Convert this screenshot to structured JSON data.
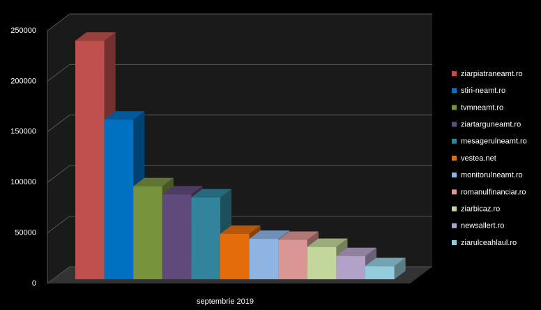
{
  "chart_data": {
    "type": "bar3d",
    "categories": [
      "septembrie 2019"
    ],
    "series": [
      {
        "name": "ziarpiatraneamt.ro",
        "color": "#c0504d",
        "values": [
          236000
        ]
      },
      {
        "name": "stiri-neamt.ro",
        "color": "#0070c0",
        "values": [
          158000
        ]
      },
      {
        "name": "tvmneamt.ro",
        "color": "#77933c",
        "values": [
          92000
        ]
      },
      {
        "name": "ziartarguneamt.ro",
        "color": "#604a7b",
        "values": [
          84000
        ]
      },
      {
        "name": "mesagerulneamt.ro",
        "color": "#31849b",
        "values": [
          81000
        ]
      },
      {
        "name": "vestea.net",
        "color": "#e46c0a",
        "values": [
          45000
        ]
      },
      {
        "name": "monitorulneamt.ro",
        "color": "#8eb4e3",
        "values": [
          40000
        ]
      },
      {
        "name": "romanulfinanciar.ro",
        "color": "#d99694",
        "values": [
          39000
        ]
      },
      {
        "name": "ziarbicaz.ro",
        "color": "#c3d69b",
        "values": [
          32000
        ]
      },
      {
        "name": "newsallert.ro",
        "color": "#b3a2c7",
        "values": [
          23000
        ]
      },
      {
        "name": "ziarulceahlaul.ro",
        "color": "#93cddd",
        "values": [
          13000
        ]
      }
    ],
    "ylim": [
      0,
      250000
    ],
    "yticks": [
      0,
      50000,
      100000,
      150000,
      200000,
      250000
    ],
    "grid": true
  }
}
